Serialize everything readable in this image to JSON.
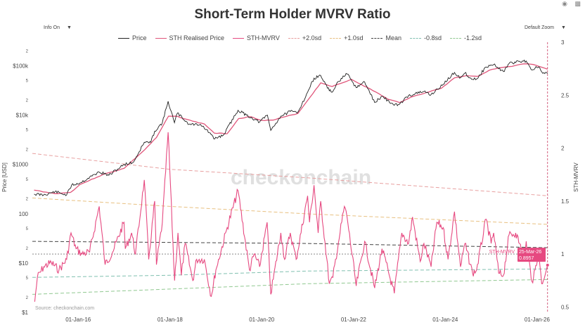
{
  "title": "Short-Term Holder MVRV Ratio",
  "toolbar": {
    "info_label": "Info On",
    "zoom_label": "Default Zoom",
    "camera_icon": "camera-icon",
    "chart_icon": "bar-chart-icon"
  },
  "legend": [
    {
      "name": "Price",
      "color": "#222222",
      "style": "solid"
    },
    {
      "name": "STH Realised Price",
      "color": "#e0557a",
      "style": "solid"
    },
    {
      "name": "STH-MVRV",
      "color": "#e64980",
      "style": "solid"
    },
    {
      "name": "+2.0sd",
      "color": "#e8a0a0",
      "style": "dashed"
    },
    {
      "name": "+1.0sd",
      "color": "#e8c080",
      "style": "dashed"
    },
    {
      "name": "Mean",
      "color": "#444444",
      "style": "dashed"
    },
    {
      "name": "-0.8sd",
      "color": "#80c0b0",
      "style": "dashed"
    },
    {
      "name": "-1.2sd",
      "color": "#90c890",
      "style": "dashed"
    }
  ],
  "watermark": "checkonchain",
  "source": "Source: checkonchain.com",
  "hover_label": {
    "series": "STH-MVRV",
    "date": "25-Mar-26",
    "value": "0.8957"
  },
  "chart_data": {
    "type": "line",
    "x_ticks": [
      "01-Jan-16",
      "01-Jan-18",
      "01-Jan-20",
      "01-Jan-22",
      "01-Jan-24",
      "01-Jan-26"
    ],
    "y_left": {
      "label": "Price [USD]",
      "scale": "log",
      "range": [
        1,
        300000
      ],
      "major_ticks": [
        {
          "v": 1,
          "label": "$1"
        },
        {
          "v": 10,
          "label": "$10"
        },
        {
          "v": 100,
          "label": "100"
        },
        {
          "v": 1000,
          "label": "$1000"
        },
        {
          "v": 10000,
          "label": "$10k"
        },
        {
          "v": 100000,
          "label": "$100k"
        }
      ],
      "minor_ticks": [
        {
          "v": 2,
          "label": "2"
        },
        {
          "v": 5,
          "label": "5"
        },
        {
          "v": 20,
          "label": "2"
        },
        {
          "v": 50,
          "label": "5"
        },
        {
          "v": 200,
          "label": "2"
        },
        {
          "v": 500,
          "label": "5"
        },
        {
          "v": 2000,
          "label": "2"
        },
        {
          "v": 5000,
          "label": "5"
        },
        {
          "v": 20000,
          "label": "2"
        },
        {
          "v": 50000,
          "label": "5"
        },
        {
          "v": 200000,
          "label": "2"
        }
      ]
    },
    "y_right": {
      "label": "STH-MVRV",
      "range": [
        0.45,
        3.0
      ],
      "ticks": [
        0.5,
        1,
        1.5,
        2,
        2.5,
        3
      ]
    },
    "x_range": [
      "2015-01-01",
      "2026-04-01"
    ],
    "price_series": [
      [
        "2015-01-15",
        250
      ],
      [
        "2015-04-01",
        240
      ],
      [
        "2015-07-01",
        280
      ],
      [
        "2015-10-01",
        240
      ],
      [
        "2015-11-10",
        380
      ],
      [
        "2016-01-15",
        420
      ],
      [
        "2016-06-15",
        700
      ],
      [
        "2016-09-01",
        600
      ],
      [
        "2017-01-01",
        1000
      ],
      [
        "2017-03-15",
        1100
      ],
      [
        "2017-06-10",
        2800
      ],
      [
        "2017-08-01",
        2800
      ],
      [
        "2017-09-01",
        4700
      ],
      [
        "2017-11-01",
        7000
      ],
      [
        "2017-12-17",
        19000
      ],
      [
        "2018-02-05",
        7000
      ],
      [
        "2018-03-01",
        11000
      ],
      [
        "2018-06-01",
        6500
      ],
      [
        "2018-09-01",
        6500
      ],
      [
        "2018-11-25",
        4000
      ],
      [
        "2018-12-15",
        3300
      ],
      [
        "2019-03-01",
        3900
      ],
      [
        "2019-06-26",
        12500
      ],
      [
        "2019-09-01",
        10000
      ],
      [
        "2019-12-15",
        7200
      ],
      [
        "2020-02-15",
        10000
      ],
      [
        "2020-03-13",
        4900
      ],
      [
        "2020-06-01",
        9500
      ],
      [
        "2020-08-15",
        11800
      ],
      [
        "2020-10-15",
        11500
      ],
      [
        "2020-12-31",
        29000
      ],
      [
        "2021-02-20",
        56000
      ],
      [
        "2021-04-14",
        63000
      ],
      [
        "2021-06-22",
        31000
      ],
      [
        "2021-07-20",
        30000
      ],
      [
        "2021-09-01",
        48000
      ],
      [
        "2021-11-10",
        68000
      ],
      [
        "2022-01-22",
        36000
      ],
      [
        "2022-03-30",
        47000
      ],
      [
        "2022-06-18",
        18000
      ],
      [
        "2022-08-15",
        24000
      ],
      [
        "2022-11-21",
        15800
      ],
      [
        "2023-01-01",
        16500
      ],
      [
        "2023-03-15",
        25000
      ],
      [
        "2023-07-15",
        30000
      ],
      [
        "2023-09-10",
        26000
      ],
      [
        "2023-12-15",
        42000
      ],
      [
        "2024-03-14",
        73000
      ],
      [
        "2024-05-01",
        57000
      ],
      [
        "2024-06-05",
        71000
      ],
      [
        "2024-08-05",
        53000
      ],
      [
        "2024-09-06",
        54000
      ],
      [
        "2024-11-20",
        94000
      ],
      [
        "2025-01-20",
        106000
      ],
      [
        "2025-04-08",
        76000
      ],
      [
        "2025-05-22",
        110000
      ],
      [
        "2025-08-14",
        123000
      ],
      [
        "2025-10-06",
        125000
      ],
      [
        "2025-11-21",
        82000
      ],
      [
        "2025-12-15",
        89000
      ],
      [
        "2026-01-15",
        95000
      ],
      [
        "2026-02-15",
        70000
      ],
      [
        "2026-03-25",
        69000
      ]
    ],
    "realised_series": [
      [
        "2015-01-15",
        300
      ],
      [
        "2015-07-01",
        255
      ],
      [
        "2015-11-01",
        270
      ],
      [
        "2016-01-15",
        390
      ],
      [
        "2016-07-15",
        620
      ],
      [
        "2017-01-01",
        830
      ],
      [
        "2017-06-15",
        2000
      ],
      [
        "2017-09-15",
        3500
      ],
      [
        "2017-12-20",
        9500
      ],
      [
        "2018-03-01",
        9400
      ],
      [
        "2018-07-01",
        7500
      ],
      [
        "2018-10-01",
        6600
      ],
      [
        "2018-12-20",
        4300
      ],
      [
        "2019-04-01",
        4200
      ],
      [
        "2019-07-01",
        8500
      ],
      [
        "2019-10-01",
        9300
      ],
      [
        "2020-01-01",
        7800
      ],
      [
        "2020-04-01",
        7900
      ],
      [
        "2020-07-15",
        9400
      ],
      [
        "2020-10-15",
        10800
      ],
      [
        "2021-01-01",
        20000
      ],
      [
        "2021-04-15",
        45000
      ],
      [
        "2021-07-15",
        38000
      ],
      [
        "2021-10-15",
        46000
      ],
      [
        "2021-12-15",
        53000
      ],
      [
        "2022-03-01",
        42000
      ],
      [
        "2022-06-30",
        29000
      ],
      [
        "2022-10-01",
        21000
      ],
      [
        "2023-01-01",
        18000
      ],
      [
        "2023-04-01",
        23000
      ],
      [
        "2023-08-01",
        28500
      ],
      [
        "2023-12-01",
        35000
      ],
      [
        "2024-03-15",
        57000
      ],
      [
        "2024-06-15",
        63000
      ],
      [
        "2024-09-15",
        61000
      ],
      [
        "2024-12-15",
        81000
      ],
      [
        "2025-03-15",
        91000
      ],
      [
        "2025-06-15",
        97000
      ],
      [
        "2025-09-15",
        109000
      ],
      [
        "2025-12-01",
        106000
      ],
      [
        "2026-02-01",
        94000
      ],
      [
        "2026-03-25",
        85000
      ]
    ],
    "mvrv_series": [
      [
        "2015-01-20",
        0.55
      ],
      [
        "2015-02-10",
        0.78
      ],
      [
        "2015-04-01",
        0.88
      ],
      [
        "2015-06-01",
        0.92
      ],
      [
        "2015-08-01",
        0.85
      ],
      [
        "2015-10-01",
        0.95
      ],
      [
        "2015-11-05",
        1.2
      ],
      [
        "2015-12-15",
        1.05
      ],
      [
        "2016-02-01",
        1.0
      ],
      [
        "2016-04-01",
        1.02
      ],
      [
        "2016-06-16",
        1.45
      ],
      [
        "2016-08-02",
        0.9
      ],
      [
        "2016-10-01",
        1.02
      ],
      [
        "2016-12-31",
        1.3
      ],
      [
        "2017-01-10",
        1.05
      ],
      [
        "2017-03-01",
        1.2
      ],
      [
        "2017-04-01",
        1.0
      ],
      [
        "2017-06-10",
        1.7
      ],
      [
        "2017-07-15",
        0.95
      ],
      [
        "2017-09-01",
        1.5
      ],
      [
        "2017-09-15",
        0.9
      ],
      [
        "2017-11-01",
        1.3
      ],
      [
        "2017-12-17",
        2.15
      ],
      [
        "2018-02-06",
        0.75
      ],
      [
        "2018-03-05",
        1.2
      ],
      [
        "2018-04-01",
        0.8
      ],
      [
        "2018-05-01",
        1.1
      ],
      [
        "2018-07-01",
        0.75
      ],
      [
        "2018-08-01",
        0.95
      ],
      [
        "2018-10-01",
        0.95
      ],
      [
        "2018-11-25",
        0.6
      ],
      [
        "2019-01-01",
        0.85
      ],
      [
        "2019-04-01",
        1.25
      ],
      [
        "2019-06-26",
        1.6
      ],
      [
        "2019-09-25",
        0.85
      ],
      [
        "2019-11-01",
        1.0
      ],
      [
        "2019-12-15",
        0.88
      ],
      [
        "2020-02-13",
        1.3
      ],
      [
        "2020-03-13",
        0.62
      ],
      [
        "2020-06-01",
        1.2
      ],
      [
        "2020-07-01",
        0.95
      ],
      [
        "2020-08-15",
        1.2
      ],
      [
        "2020-10-01",
        0.95
      ],
      [
        "2020-12-31",
        1.55
      ],
      [
        "2021-01-15",
        1.3
      ],
      [
        "2021-02-20",
        1.65
      ],
      [
        "2021-03-25",
        1.2
      ],
      [
        "2021-04-14",
        1.5
      ],
      [
        "2021-06-22",
        0.72
      ],
      [
        "2021-07-20",
        0.78
      ],
      [
        "2021-09-01",
        1.1
      ],
      [
        "2021-10-20",
        1.45
      ],
      [
        "2021-11-10",
        1.35
      ],
      [
        "2022-01-22",
        0.7
      ],
      [
        "2022-03-30",
        1.12
      ],
      [
        "2022-06-18",
        0.68
      ],
      [
        "2022-08-15",
        1.05
      ],
      [
        "2022-11-21",
        0.63
      ],
      [
        "2023-01-20",
        1.2
      ],
      [
        "2023-03-15",
        1.1
      ],
      [
        "2023-04-15",
        1.35
      ],
      [
        "2023-06-15",
        0.93
      ],
      [
        "2023-07-15",
        1.1
      ],
      [
        "2023-09-10",
        0.88
      ],
      [
        "2023-10-25",
        1.3
      ],
      [
        "2023-12-15",
        1.25
      ],
      [
        "2024-01-23",
        0.95
      ],
      [
        "2024-03-14",
        1.4
      ],
      [
        "2024-05-01",
        0.88
      ],
      [
        "2024-06-05",
        1.1
      ],
      [
        "2024-08-05",
        0.82
      ],
      [
        "2024-09-06",
        0.85
      ],
      [
        "2024-11-20",
        1.33
      ],
      [
        "2024-12-31",
        1.1
      ],
      [
        "2025-01-20",
        1.2
      ],
      [
        "2025-03-01",
        0.82
      ],
      [
        "2025-04-08",
        0.8
      ],
      [
        "2025-05-22",
        1.18
      ],
      [
        "2025-07-14",
        1.2
      ],
      [
        "2025-08-14",
        1.1
      ],
      [
        "2025-09-25",
        0.95
      ],
      [
        "2025-10-06",
        1.12
      ],
      [
        "2025-11-21",
        0.74
      ],
      [
        "2025-12-15",
        0.85
      ],
      [
        "2026-01-15",
        1.0
      ],
      [
        "2026-02-06",
        0.72
      ],
      [
        "2026-03-25",
        0.8957
      ]
    ],
    "bands": [
      {
        "name": "+2.0sd",
        "color": "#e8a0a0",
        "points": [
          [
            "2015-01-01",
            1.95
          ],
          [
            "2018-01-01",
            1.8
          ],
          [
            "2021-01-01",
            1.72
          ],
          [
            "2026-04-01",
            1.55
          ]
        ]
      },
      {
        "name": "+1.0sd",
        "color": "#e8c080",
        "points": [
          [
            "2015-01-01",
            1.53
          ],
          [
            "2018-01-01",
            1.45
          ],
          [
            "2021-01-01",
            1.38
          ],
          [
            "2026-04-01",
            1.28
          ]
        ]
      },
      {
        "name": "Mean",
        "color": "#444444",
        "points": [
          [
            "2015-01-01",
            1.12
          ],
          [
            "2018-01-01",
            1.11
          ],
          [
            "2021-01-01",
            1.1
          ],
          [
            "2026-04-01",
            1.06
          ]
        ]
      },
      {
        "name": "-0.8sd",
        "color": "#80c0b0",
        "points": [
          [
            "2015-01-01",
            0.78
          ],
          [
            "2018-01-01",
            0.8
          ],
          [
            "2021-01-01",
            0.84
          ],
          [
            "2026-04-01",
            0.86
          ]
        ]
      },
      {
        "name": "-1.2sd",
        "color": "#90c890",
        "points": [
          [
            "2015-01-01",
            0.62
          ],
          [
            "2018-01-01",
            0.67
          ],
          [
            "2021-01-01",
            0.72
          ],
          [
            "2026-04-01",
            0.76
          ]
        ]
      }
    ],
    "reference_line": {
      "y": 1.0,
      "style": "dotted",
      "color": "#888888"
    },
    "cursor_date": "2026-03-25"
  }
}
